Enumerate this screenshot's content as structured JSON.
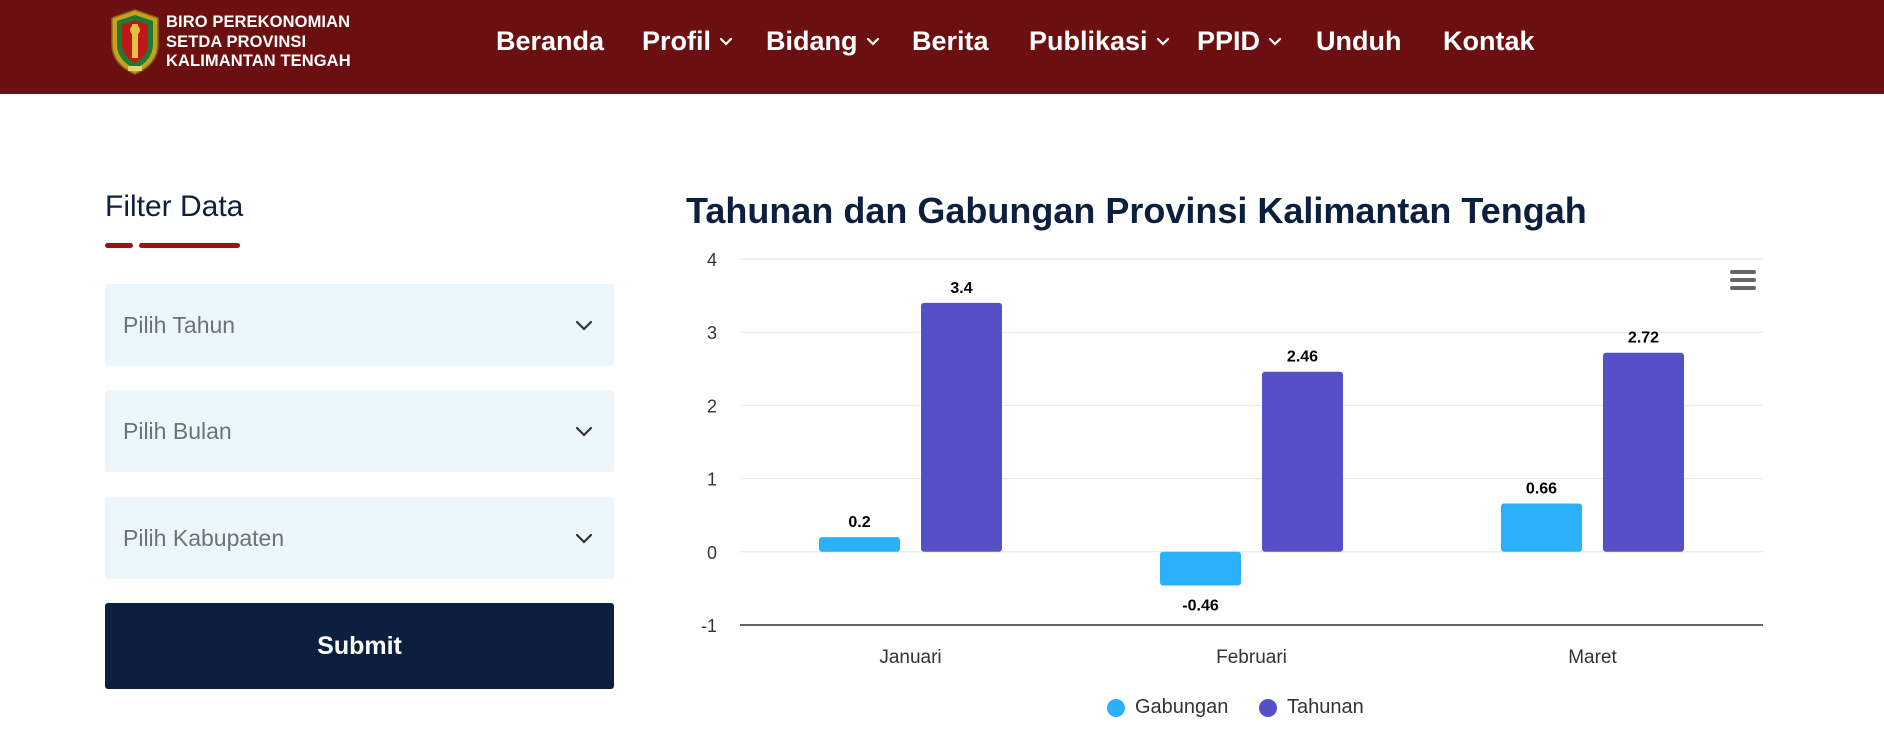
{
  "header": {
    "brand_lines": [
      "BIRO PEREKONOMIAN",
      "SETDA PROVINSI",
      "KALIMANTAN TENGAH"
    ],
    "nav": [
      {
        "label": "Beranda",
        "dropdown": false
      },
      {
        "label": "Profil",
        "dropdown": true
      },
      {
        "label": "Bidang",
        "dropdown": true
      },
      {
        "label": "Berita",
        "dropdown": false
      },
      {
        "label": "Publikasi",
        "dropdown": true
      },
      {
        "label": "PPID",
        "dropdown": true
      },
      {
        "label": "Unduh",
        "dropdown": false
      },
      {
        "label": "Kontak",
        "dropdown": false
      }
    ],
    "colors": {
      "background": "#6b0f10",
      "text": "#ffffff"
    }
  },
  "filter": {
    "title": "Filter Data",
    "selects": [
      {
        "placeholder": "Pilih Tahun"
      },
      {
        "placeholder": "Pilih Bulan"
      },
      {
        "placeholder": "Pilih Kabupaten"
      }
    ],
    "submit_label": "Submit",
    "colors": {
      "accent": "#9e1214",
      "select_bg": "#ecf6fd",
      "button_bg": "#0c1f3f"
    }
  },
  "chart_data": {
    "type": "bar",
    "title": "Tahunan dan Gabungan Provinsi Kalimantan Tengah",
    "categories": [
      "Januari",
      "Februari",
      "Maret"
    ],
    "series": [
      {
        "name": "Gabungan",
        "values": [
          0.2,
          -0.46,
          0.66
        ],
        "labels": [
          "0.2",
          "-0.46",
          "0.66"
        ],
        "color": "#2bb0fb"
      },
      {
        "name": "Tahunan",
        "values": [
          3.4,
          2.46,
          2.72
        ],
        "labels": [
          "3.4",
          "2.46",
          "2.72"
        ],
        "color": "#5550c6"
      }
    ],
    "ylim": [
      -1,
      4
    ],
    "yticks": [
      "4",
      "3",
      "2",
      "1",
      "0",
      "-1"
    ],
    "grid": true,
    "legend": "bottom-center",
    "menu_icon": "hamburger-icon"
  }
}
